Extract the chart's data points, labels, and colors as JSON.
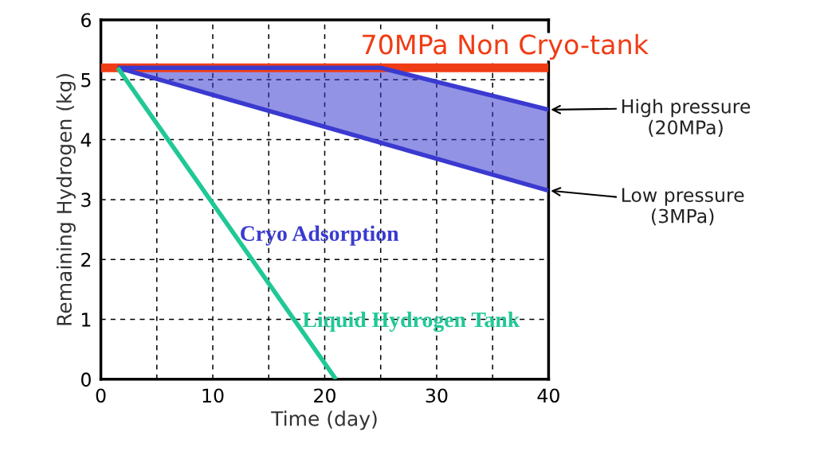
{
  "chart_data": {
    "type": "line",
    "xlabel": "Time (day)",
    "ylabel": "Remaining Hydrogen (kg)",
    "xlim": [
      0,
      40
    ],
    "ylim": [
      0,
      6
    ],
    "xticks": [
      0,
      {
        "value": 5,
        "label": null
      },
      10,
      {
        "value": 15,
        "label": null
      },
      20,
      {
        "value": 25,
        "label": null
      },
      30,
      {
        "value": 35,
        "label": null
      },
      40
    ],
    "yticks": [
      0,
      1,
      2,
      3,
      4,
      5,
      6
    ],
    "grid": true,
    "line_style": "solid",
    "series": [
      {
        "type": "line",
        "name": "70MPa Non Cryo-tank",
        "color": "#f03c14",
        "x": [
          0,
          40
        ],
        "values": [
          5.2,
          5.2
        ]
      },
      {
        "type": "line",
        "color": "#3a3ad0",
        "x": [
          1.5,
          25,
          40
        ],
        "values": [
          5.2,
          5.2,
          4.5
        ],
        "lower": [
          5.2,
          3.95,
          3.15
        ],
        "upper": [
          5.2,
          5.2,
          4.5
        ]
      },
      {
        "type": "line",
        "name": "Cryo Adsorption",
        "color": "#3a3ad0",
        "x": [
          1.5,
          40
        ],
        "values": [
          5.2,
          3.15
        ]
      },
      {
        "type": "line",
        "name": "Liquid Hydrogen Tank",
        "color": "#20c896",
        "x": [
          1.5,
          21
        ],
        "values": [
          5.2,
          0
        ]
      }
    ],
    "annotations": [
      {
        "text": "High pressure\n(20MPa)",
        "x": 40,
        "y": 4.5
      },
      {
        "text": "Low pressure\n(3MPa)",
        "x": 40,
        "y": 3.15
      }
    ]
  }
}
